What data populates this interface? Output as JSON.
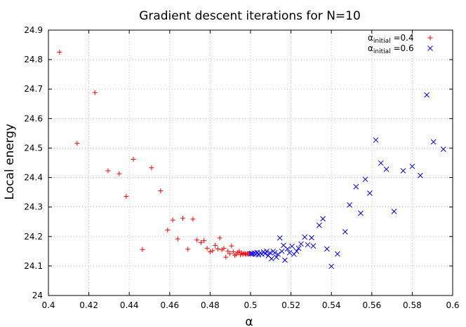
{
  "chart_data": {
    "type": "scatter",
    "title": "Gradient descent iterations for N=10",
    "xlabel": "α",
    "ylabel": "Local energy",
    "xlim": [
      0.4,
      0.6
    ],
    "ylim": [
      24.0,
      24.9
    ],
    "x_ticks": [
      "0.4",
      "0.42",
      "0.44",
      "0.46",
      "0.48",
      "0.5",
      "0.52",
      "0.54",
      "0.56",
      "0.58",
      "0.6"
    ],
    "y_ticks": [
      "24",
      "24.1",
      "24.2",
      "24.3",
      "24.4",
      "24.5",
      "24.6",
      "24.7",
      "24.8",
      "24.9"
    ],
    "grid": true,
    "legend_position": "top-right",
    "series": [
      {
        "name": "α_initial=0.4",
        "legend_main": "α",
        "legend_sub": "initial",
        "legend_value": "=0.4",
        "marker": "plus",
        "color": "#ff0000",
        "points": [
          [
            0.4055,
            24.825
          ],
          [
            0.4142,
            24.516
          ],
          [
            0.423,
            24.688
          ],
          [
            0.4295,
            24.423
          ],
          [
            0.435,
            24.413
          ],
          [
            0.4385,
            24.336
          ],
          [
            0.442,
            24.462
          ],
          [
            0.4465,
            24.156
          ],
          [
            0.451,
            24.433
          ],
          [
            0.4555,
            24.355
          ],
          [
            0.459,
            24.222
          ],
          [
            0.4615,
            24.256
          ],
          [
            0.464,
            24.192
          ],
          [
            0.4665,
            24.262
          ],
          [
            0.469,
            24.157
          ],
          [
            0.4715,
            24.259
          ],
          [
            0.4735,
            24.188
          ],
          [
            0.4755,
            24.18
          ],
          [
            0.477,
            24.186
          ],
          [
            0.4785,
            24.16
          ],
          [
            0.48,
            24.148
          ],
          [
            0.4812,
            24.152
          ],
          [
            0.4825,
            24.17
          ],
          [
            0.4838,
            24.158
          ],
          [
            0.4848,
            24.195
          ],
          [
            0.4858,
            24.155
          ],
          [
            0.4868,
            24.16
          ],
          [
            0.4878,
            24.13
          ],
          [
            0.4888,
            24.15
          ],
          [
            0.4898,
            24.142
          ],
          [
            0.4906,
            24.168
          ],
          [
            0.4914,
            24.148
          ],
          [
            0.4922,
            24.136
          ],
          [
            0.493,
            24.14
          ],
          [
            0.4937,
            24.146
          ],
          [
            0.4944,
            24.15
          ],
          [
            0.495,
            24.138
          ],
          [
            0.4956,
            24.144
          ],
          [
            0.4962,
            24.14
          ],
          [
            0.4968,
            24.143
          ],
          [
            0.4974,
            24.141
          ],
          [
            0.4979,
            24.14
          ],
          [
            0.4984,
            24.142
          ],
          [
            0.4989,
            24.141
          ],
          [
            0.4994,
            24.142
          ],
          [
            0.4999,
            24.141
          ]
        ]
      },
      {
        "name": "α_initial=0.6",
        "legend_main": "α",
        "legend_sub": "initial",
        "legend_value": "=0.6",
        "marker": "cross",
        "color": "#0000ff",
        "points": [
          [
            0.5954,
            24.496
          ],
          [
            0.5905,
            24.521
          ],
          [
            0.5872,
            24.68
          ],
          [
            0.584,
            24.407
          ],
          [
            0.58,
            24.438
          ],
          [
            0.5755,
            24.423
          ],
          [
            0.571,
            24.285
          ],
          [
            0.5672,
            24.428
          ],
          [
            0.5645,
            24.449
          ],
          [
            0.562,
            24.527
          ],
          [
            0.559,
            24.347
          ],
          [
            0.5568,
            24.394
          ],
          [
            0.5545,
            24.279
          ],
          [
            0.5522,
            24.369
          ],
          [
            0.549,
            24.307
          ],
          [
            0.5468,
            24.216
          ],
          [
            0.543,
            24.141
          ],
          [
            0.54,
            24.099
          ],
          [
            0.5378,
            24.158
          ],
          [
            0.5358,
            24.26
          ],
          [
            0.534,
            24.238
          ],
          [
            0.531,
            24.168
          ],
          [
            0.5302,
            24.196
          ],
          [
            0.5283,
            24.172
          ],
          [
            0.5268,
            24.198
          ],
          [
            0.525,
            24.175
          ],
          [
            0.5238,
            24.16
          ],
          [
            0.5228,
            24.15
          ],
          [
            0.5215,
            24.14
          ],
          [
            0.5205,
            24.167
          ],
          [
            0.5193,
            24.145
          ],
          [
            0.5183,
            24.158
          ],
          [
            0.517,
            24.12
          ],
          [
            0.5163,
            24.17
          ],
          [
            0.5155,
            24.15
          ],
          [
            0.5145,
            24.195
          ],
          [
            0.5136,
            24.14
          ],
          [
            0.5128,
            24.13
          ],
          [
            0.512,
            24.145
          ],
          [
            0.5112,
            24.15
          ],
          [
            0.5104,
            24.125
          ],
          [
            0.5096,
            24.145
          ],
          [
            0.5088,
            24.135
          ],
          [
            0.508,
            24.15
          ],
          [
            0.5072,
            24.142
          ],
          [
            0.5064,
            24.148
          ],
          [
            0.5056,
            24.14
          ],
          [
            0.5048,
            24.145
          ],
          [
            0.504,
            24.138
          ],
          [
            0.5033,
            24.146
          ],
          [
            0.5026,
            24.14
          ],
          [
            0.5019,
            24.144
          ],
          [
            0.5012,
            24.141
          ],
          [
            0.5006,
            24.143
          ],
          [
            0.5001,
            24.141
          ]
        ]
      }
    ]
  }
}
